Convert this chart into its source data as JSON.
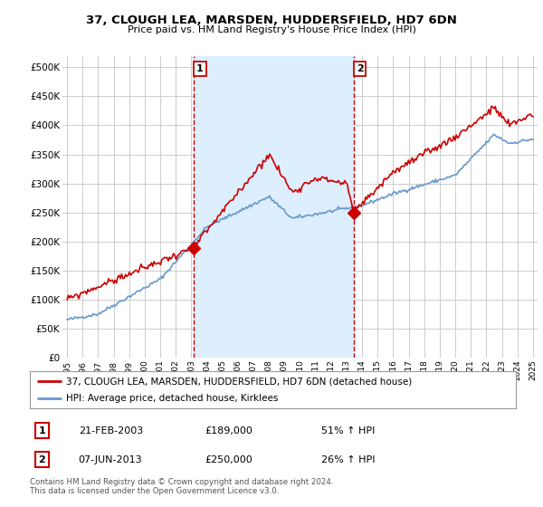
{
  "title": "37, CLOUGH LEA, MARSDEN, HUDDERSFIELD, HD7 6DN",
  "subtitle": "Price paid vs. HM Land Registry's House Price Index (HPI)",
  "ylabel_ticks": [
    "£0",
    "£50K",
    "£100K",
    "£150K",
    "£200K",
    "£250K",
    "£300K",
    "£350K",
    "£400K",
    "£450K",
    "£500K"
  ],
  "ytick_values": [
    0,
    50000,
    100000,
    150000,
    200000,
    250000,
    300000,
    350000,
    400000,
    450000,
    500000
  ],
  "ylim": [
    0,
    520000
  ],
  "xlim_start": 1994.7,
  "xlim_end": 2025.3,
  "marker1_x": 2003.13,
  "marker1_y": 189000,
  "marker2_x": 2013.44,
  "marker2_y": 250000,
  "vline1_x": 2003.13,
  "vline2_x": 2013.44,
  "legend_line1": "37, CLOUGH LEA, MARSDEN, HUDDERSFIELD, HD7 6DN (detached house)",
  "legend_line2": "HPI: Average price, detached house, Kirklees",
  "table_row1": [
    "1",
    "21-FEB-2003",
    "£189,000",
    "51% ↑ HPI"
  ],
  "table_row2": [
    "2",
    "07-JUN-2013",
    "£250,000",
    "26% ↑ HPI"
  ],
  "footnote": "Contains HM Land Registry data © Crown copyright and database right 2024.\nThis data is licensed under the Open Government Licence v3.0.",
  "price_line_color": "#cc0000",
  "hpi_line_color": "#6699cc",
  "shade_color": "#ddeeff",
  "vline_color": "#cc0000",
  "background_color": "#ffffff",
  "grid_color": "#cccccc"
}
